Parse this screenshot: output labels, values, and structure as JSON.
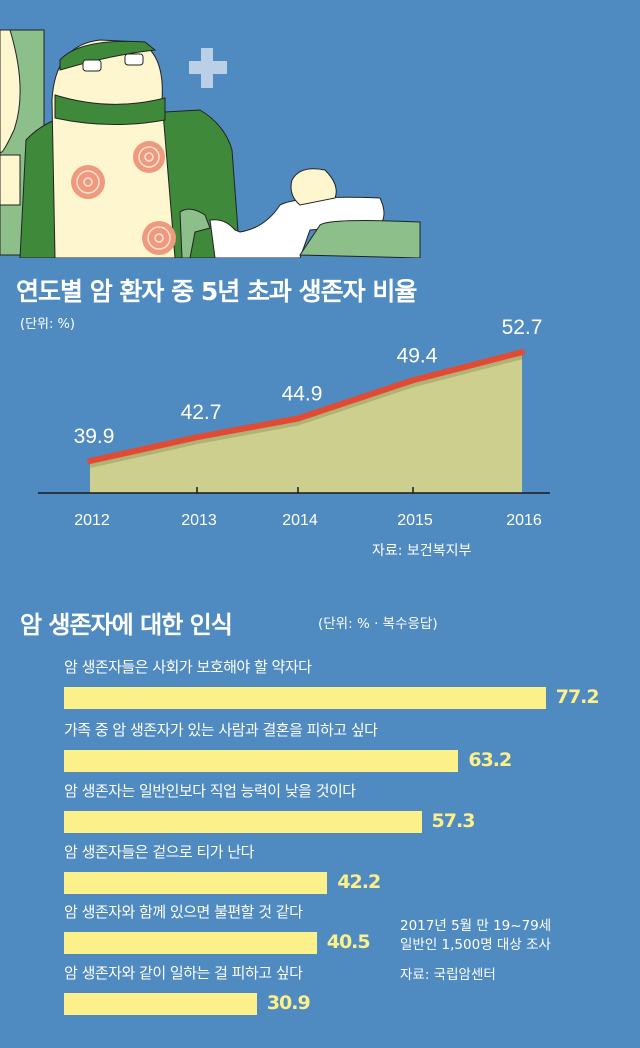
{
  "colors": {
    "background": "#4f8bc1",
    "area": "#cdcf8e",
    "line": "#e24b33",
    "bar": "#fbf08a",
    "text": "#ffffff"
  },
  "illustration": {
    "description_icon": "doctor-examining-patient-illustration",
    "cross_icon": "medical-cross-icon"
  },
  "chart_data": [
    {
      "type": "area",
      "title": "연도별 암 환자 중 5년 초과 생존자 비율",
      "unit": "(단위: %)",
      "categories": [
        "2012",
        "2013",
        "2014",
        "2015",
        "2016"
      ],
      "values": [
        39.9,
        42.7,
        44.9,
        49.4,
        52.7
      ],
      "data_labels": [
        "39.9",
        "42.7",
        "44.9",
        "49.4",
        "52.7"
      ],
      "source": "자료: 보건복지부",
      "grid": false
    },
    {
      "type": "bar",
      "title": "암 생존자에 대한 인식",
      "unit": "(단위: % · 복수응답)",
      "categories": [
        "암 생존자들은 사회가 보호해야 할 약자다",
        "가족 중 암 생존자가 있는 사람과 결혼을 피하고 싶다",
        "암 생존자는 일반인보다 직업 능력이 낮을 것이다",
        "암 생존자들은 겉으로 티가 난다",
        "암 생존자와 함께 있으면 불편할 것 같다",
        "암 생존자와 같이 일하는 걸 피하고 싶다"
      ],
      "values": [
        77.2,
        63.2,
        57.3,
        42.2,
        40.5,
        30.9
      ],
      "data_labels": [
        "77.2",
        "63.2",
        "57.3",
        "42.2",
        "40.5",
        "30.9"
      ],
      "note_lines": [
        "2017년 5월 만 19~79세",
        "일반인 1,500명 대상 조사"
      ],
      "source": "자료: 국립암센터"
    }
  ]
}
